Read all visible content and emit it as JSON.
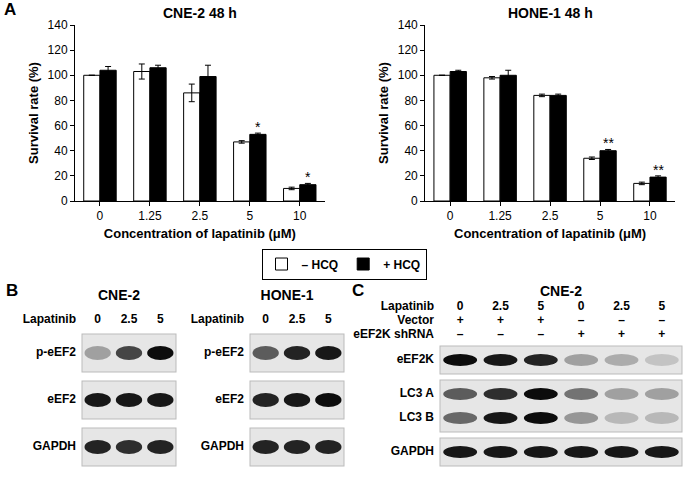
{
  "chart_data": [
    {
      "type": "bar",
      "title": "CNE-2 48 h",
      "categories": [
        "0",
        "1.25",
        "2.5",
        "5",
        "10"
      ],
      "x_label": "Concentration of lapatinib (μM)",
      "y_label": "Survival rate (%)",
      "ylim": [
        0,
        140
      ],
      "yticks": [
        0,
        20,
        40,
        60,
        80,
        100,
        120,
        140
      ],
      "legend": "bottom",
      "series": [
        {
          "name": "– HCQ",
          "color": "#ffffff",
          "values": [
            100,
            103,
            86,
            47,
            10
          ],
          "errors": [
            0,
            6,
            7,
            1,
            1
          ]
        },
        {
          "name": "+ HCQ",
          "color": "#000000",
          "values": [
            104,
            106,
            99,
            53,
            13
          ],
          "errors": [
            3,
            2,
            9,
            1,
            1
          ]
        }
      ],
      "annotations": [
        {
          "text": "*",
          "category": "5",
          "series": "+ HCQ"
        },
        {
          "text": "*",
          "category": "10",
          "series": "+ HCQ"
        }
      ]
    },
    {
      "type": "bar",
      "title": "HONE-1 48 h",
      "categories": [
        "0",
        "1.25",
        "2.5",
        "5",
        "10"
      ],
      "x_label": "Concentration of lapatinib (μM)",
      "y_label": "Survival rate (%)",
      "ylim": [
        0,
        140
      ],
      "yticks": [
        0,
        20,
        40,
        60,
        80,
        100,
        120,
        140
      ],
      "series": [
        {
          "name": "– HCQ",
          "color": "#ffffff",
          "values": [
            100,
            98,
            84,
            34,
            14
          ],
          "errors": [
            0,
            1,
            1,
            1,
            1
          ]
        },
        {
          "name": "+ HCQ",
          "color": "#000000",
          "values": [
            103,
            100,
            84,
            40,
            19
          ],
          "errors": [
            1,
            4,
            1,
            1,
            1
          ]
        }
      ],
      "annotations": [
        {
          "text": "**",
          "category": "5",
          "series": "+ HCQ"
        },
        {
          "text": "**",
          "category": "10",
          "series": "+ HCQ"
        }
      ]
    }
  ],
  "panel_labels": [
    "A",
    "B",
    "C"
  ],
  "blots": [
    {
      "title": "CNE-2",
      "conditions": [
        {
          "label": "Lapatinib",
          "values": [
            0,
            2.5,
            5
          ]
        }
      ],
      "membranes": [
        [
          {
            "label": "p-eEF2",
            "intensity": [
              0.3,
              0.7,
              0.95
            ]
          }
        ],
        [
          {
            "label": "eEF2",
            "intensity": [
              0.9,
              0.9,
              0.9
            ]
          }
        ],
        [
          {
            "label": "GAPDH",
            "intensity": [
              0.85,
              0.8,
              0.85
            ]
          }
        ]
      ]
    },
    {
      "title": "HONE-1",
      "conditions": [
        {
          "label": "Lapatinib",
          "values": [
            0,
            2.5,
            5
          ]
        }
      ],
      "membranes": [
        [
          {
            "label": "p-eEF2",
            "intensity": [
              0.6,
              0.85,
              0.9
            ]
          }
        ],
        [
          {
            "label": "eEF2",
            "intensity": [
              0.85,
              0.9,
              0.95
            ]
          }
        ],
        [
          {
            "label": "GAPDH",
            "intensity": [
              0.85,
              0.85,
              0.85
            ]
          }
        ]
      ]
    },
    {
      "title": "CNE-2",
      "conditions": [
        {
          "label": "Lapatinib",
          "values": [
            0,
            2.5,
            5,
            0,
            2.5,
            5
          ]
        },
        {
          "label": "Vector",
          "values": [
            "+",
            "+",
            "+",
            "–",
            "–",
            "–"
          ]
        },
        {
          "label": "eEF2K shRNA",
          "values": [
            "–",
            "–",
            "–",
            "+",
            "+",
            "+"
          ]
        }
      ],
      "membranes": [
        [
          {
            "label": "eEF2K",
            "intensity": [
              0.95,
              0.9,
              0.85,
              0.3,
              0.25,
              0.15
            ]
          }
        ],
        [
          {
            "label": "LC3 A",
            "intensity": [
              0.6,
              0.8,
              0.95,
              0.5,
              0.3,
              0.3
            ]
          },
          {
            "label": "LC3 B",
            "intensity": [
              0.55,
              0.9,
              0.95,
              0.35,
              0.2,
              0.2
            ]
          }
        ],
        [
          {
            "label": "GAPDH",
            "intensity": [
              0.9,
              0.9,
              0.9,
              0.9,
              0.9,
              0.9
            ]
          }
        ]
      ]
    }
  ]
}
